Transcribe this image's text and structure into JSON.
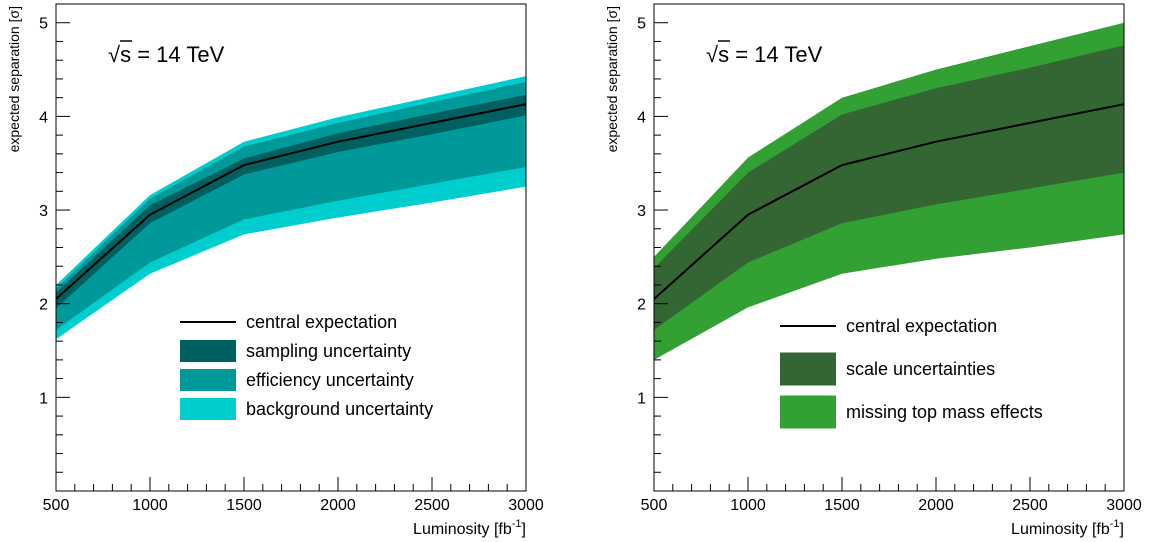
{
  "chart_data": [
    {
      "type": "area",
      "annotation": "√s = 14 TeV",
      "annotation_parts": {
        "root_symbol": "√",
        "radicand": "s",
        "rest": " = 14 TeV"
      },
      "xlabel": "Luminosity [fb",
      "xlabel_sup": "-1",
      "xlabel_tail": "]",
      "ylabel": "expected separation [σ]",
      "xlim": [
        500,
        3000
      ],
      "ylim": [
        0,
        5.2
      ],
      "x": [
        500,
        1000,
        1500,
        2000,
        2500,
        3000
      ],
      "xticks": [
        "500",
        "1000",
        "1500",
        "2000",
        "2500",
        "3000"
      ],
      "yticks": [
        "1",
        "2",
        "3",
        "4",
        "5"
      ],
      "legend_position": "lower-right",
      "central": {
        "name": "central expectation",
        "color": "#000000",
        "values": [
          2.05,
          2.95,
          3.48,
          3.73,
          3.93,
          4.13
        ]
      },
      "bands": [
        {
          "name": "background uncertainty",
          "color": "#00cdcd",
          "lower": [
            1.62,
            2.32,
            2.74,
            2.92,
            3.08,
            3.25
          ],
          "upper": [
            2.2,
            3.16,
            3.73,
            3.99,
            4.21,
            4.43
          ]
        },
        {
          "name": "efficiency uncertainty",
          "color": "#009999",
          "lower": [
            1.72,
            2.44,
            2.9,
            3.1,
            3.28,
            3.46
          ],
          "upper": [
            2.16,
            3.12,
            3.68,
            3.93,
            4.15,
            4.37
          ]
        },
        {
          "name": "sampling uncertainty",
          "color": "#006060",
          "lower": [
            1.95,
            2.86,
            3.38,
            3.62,
            3.81,
            4.01
          ],
          "upper": [
            2.12,
            3.05,
            3.55,
            3.82,
            4.03,
            4.23
          ]
        }
      ],
      "legend_order": [
        "central expectation",
        "sampling uncertainty",
        "efficiency uncertainty",
        "background uncertainty"
      ]
    },
    {
      "type": "area",
      "annotation": "√s = 14 TeV",
      "annotation_parts": {
        "root_symbol": "√",
        "radicand": "s",
        "rest": " = 14 TeV"
      },
      "xlabel": "Luminosity [fb",
      "xlabel_sup": "-1",
      "xlabel_tail": "]",
      "ylabel": "expected separation [σ]",
      "xlim": [
        500,
        3000
      ],
      "ylim": [
        0,
        5.2
      ],
      "x": [
        500,
        1000,
        1500,
        2000,
        2500,
        3000
      ],
      "xticks": [
        "500",
        "1000",
        "1500",
        "2000",
        "2500",
        "3000"
      ],
      "yticks": [
        "1",
        "2",
        "3",
        "4",
        "5"
      ],
      "legend_position": "lower-right",
      "central": {
        "name": "central expectation",
        "color": "#000000",
        "values": [
          2.05,
          2.95,
          3.48,
          3.73,
          3.93,
          4.13
        ]
      },
      "bands": [
        {
          "name": "missing top mass effects",
          "color": "#33a033",
          "lower": [
            1.4,
            1.96,
            2.32,
            2.48,
            2.6,
            2.74
          ],
          "upper": [
            2.5,
            3.56,
            4.2,
            4.5,
            4.75,
            5.0
          ]
        },
        {
          "name": "scale uncertainties",
          "color": "#336633",
          "lower": [
            1.72,
            2.44,
            2.86,
            3.06,
            3.23,
            3.4
          ],
          "upper": [
            2.38,
            3.4,
            4.02,
            4.3,
            4.52,
            4.76
          ]
        }
      ],
      "legend_order": [
        "central expectation",
        "scale uncertainties",
        "missing top mass effects"
      ]
    }
  ]
}
